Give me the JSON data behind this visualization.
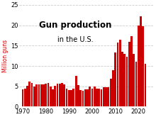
{
  "title_line1": "Gun production",
  "title_line2": "in the U.S.",
  "ylabel": "Million guns",
  "xlim": [
    1968.5,
    2026.5
  ],
  "ylim": [
    0,
    25
  ],
  "yticks": [
    0,
    5,
    10,
    15,
    20,
    25
  ],
  "xticks": [
    1970,
    1980,
    1990,
    2000,
    2010,
    2020
  ],
  "bar_color": "#cc0000",
  "background_color": "#ffffff",
  "grid_color": "#cccccc",
  "title_fontsize": 8.5,
  "subtitle_fontsize": 7.0,
  "ylabel_fontsize": 5.5,
  "tick_fontsize": 6.0,
  "years": [
    1970,
    1971,
    1972,
    1973,
    1974,
    1975,
    1976,
    1977,
    1978,
    1979,
    1980,
    1981,
    1982,
    1983,
    1984,
    1985,
    1986,
    1987,
    1988,
    1989,
    1990,
    1991,
    1992,
    1993,
    1994,
    1995,
    1996,
    1997,
    1998,
    1999,
    2000,
    2001,
    2002,
    2003,
    2004,
    2005,
    2006,
    2007,
    2008,
    2009,
    2010,
    2011,
    2012,
    2013,
    2014,
    2015,
    2016,
    2017,
    2018,
    2019,
    2020,
    2021,
    2022,
    2023
  ],
  "values": [
    4.3,
    4.5,
    5.1,
    6.2,
    5.9,
    5.0,
    5.4,
    5.4,
    5.5,
    5.4,
    5.6,
    5.9,
    4.9,
    4.2,
    5.1,
    5.7,
    5.7,
    5.8,
    5.5,
    4.5,
    4.0,
    4.1,
    4.5,
    7.5,
    5.3,
    4.1,
    3.9,
    4.2,
    4.2,
    4.9,
    4.5,
    4.9,
    4.5,
    4.4,
    4.3,
    4.7,
    4.7,
    4.7,
    6.8,
    9.0,
    13.4,
    15.7,
    16.4,
    13.5,
    12.9,
    12.3,
    15.9,
    17.3,
    13.0,
    11.0,
    19.9,
    22.2,
    19.8,
    10.5
  ]
}
